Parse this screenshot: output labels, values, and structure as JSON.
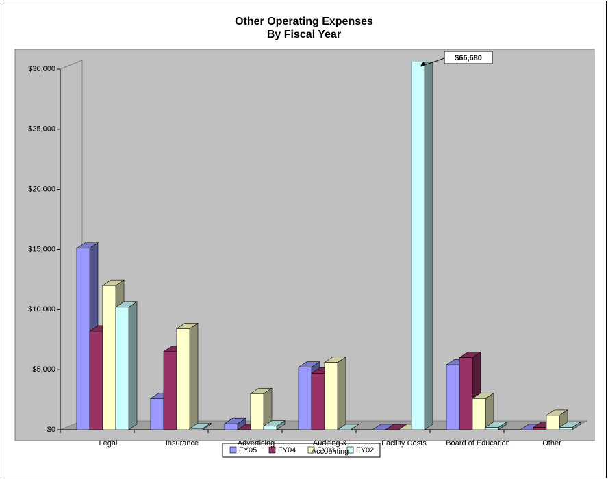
{
  "chart_data": {
    "type": "bar3d",
    "title": "Other Operating Expenses",
    "subtitle": "By Fiscal Year",
    "categories": [
      "Legal",
      "Insurance",
      "Advertising",
      "Auditing & Accounting",
      "Facility Costs",
      "Board of Education",
      "Other"
    ],
    "series": [
      {
        "name": "FY05",
        "color": "#9999ff",
        "values": [
          15100,
          2600,
          500,
          5200,
          0,
          5400,
          0
        ]
      },
      {
        "name": "FY04",
        "color": "#993366",
        "values": [
          8200,
          6500,
          0,
          4700,
          0,
          6000,
          200
        ]
      },
      {
        "name": "FY03",
        "color": "#ffffcc",
        "values": [
          12000,
          8400,
          3000,
          5600,
          0,
          2600,
          1200
        ]
      },
      {
        "name": "FY02",
        "color": "#ccffff",
        "values": [
          10200,
          100,
          300,
          0,
          66680,
          200,
          200
        ],
        "value_labels": [
          null,
          null,
          null,
          null,
          "$66,680",
          null,
          null
        ]
      }
    ],
    "ylim": [
      0,
      30000
    ],
    "yticks": [
      {
        "value": 0,
        "label": "$0"
      },
      {
        "value": 5000,
        "label": "$5,000"
      },
      {
        "value": 10000,
        "label": "$10,000"
      },
      {
        "value": 15000,
        "label": "$15,000"
      },
      {
        "value": 20000,
        "label": "$20,000"
      },
      {
        "value": 25000,
        "label": "$25,000"
      },
      {
        "value": 30000,
        "label": "$30,000"
      }
    ],
    "grid": false,
    "legend": "bottom"
  }
}
